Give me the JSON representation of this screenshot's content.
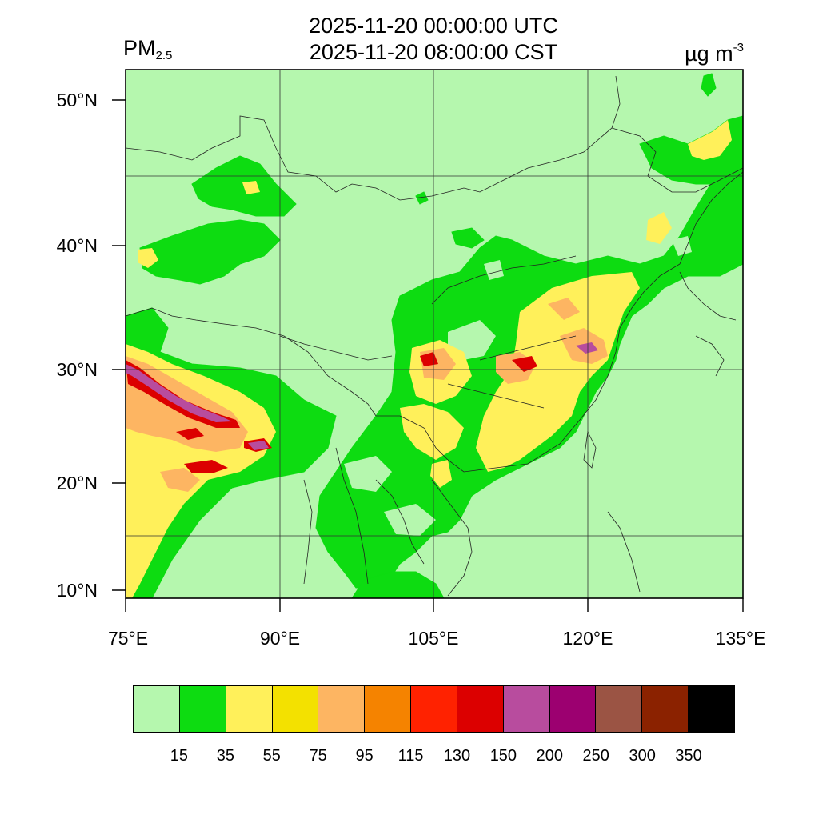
{
  "map": {
    "title_utc": "2025-11-20 00:00:00 UTC",
    "title_cst": "2025-11-20 08:00:00 CST",
    "variable_main": "PM",
    "variable_sub": "2.5",
    "units_main": "µg m",
    "units_sup": "-3",
    "lat_labels": [
      "50°N",
      "40°N",
      "30°N",
      "20°N",
      "10°N"
    ],
    "lon_labels": [
      "75°E",
      "90°E",
      "105°E",
      "120°E",
      "135°E"
    ],
    "background_color": "#b5f7ae"
  },
  "colorbar": {
    "colors": [
      "#b5f7ae",
      "#0ddc11",
      "#fff05a",
      "#f3e100",
      "#fdb562",
      "#f58300",
      "#ff2200",
      "#dc0000",
      "#b84c9e",
      "#9c0070",
      "#9b5444",
      "#8b2200",
      "#000000"
    ],
    "labels": [
      "15",
      "35",
      "55",
      "75",
      "95",
      "115",
      "130",
      "150",
      "200",
      "250",
      "300",
      "350"
    ]
  }
}
